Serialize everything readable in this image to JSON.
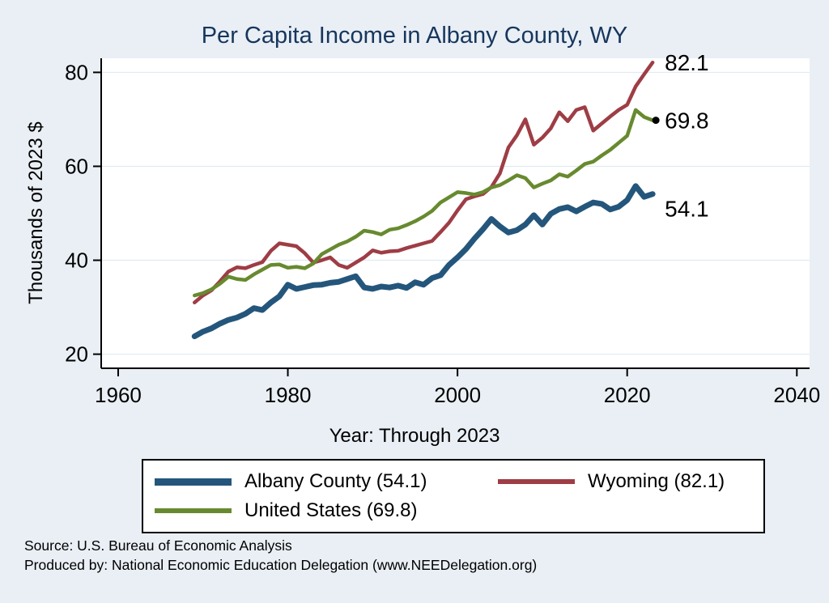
{
  "page": {
    "background": "#e9eff5"
  },
  "header": {
    "title_color": "#17365d"
  },
  "chart_data": {
    "type": "line",
    "title": "Per Capita Income in Albany County, WY",
    "xlabel": "Year: Through 2023",
    "ylabel": "Thousands of 2023 $",
    "xlim": [
      1958,
      2041.5
    ],
    "ylim": [
      17,
      83
    ],
    "xticks": [
      1960,
      1980,
      2000,
      2020,
      2040
    ],
    "yticks": [
      20,
      40,
      60,
      80
    ],
    "grid": true,
    "legend_position": "bottom",
    "x": [
      1969,
      1970,
      1971,
      1972,
      1973,
      1974,
      1975,
      1976,
      1977,
      1978,
      1979,
      1980,
      1981,
      1982,
      1983,
      1984,
      1985,
      1986,
      1987,
      1988,
      1989,
      1990,
      1991,
      1992,
      1993,
      1994,
      1995,
      1996,
      1997,
      1998,
      1999,
      2000,
      2001,
      2002,
      2003,
      2004,
      2005,
      2006,
      2007,
      2008,
      2009,
      2010,
      2011,
      2012,
      2013,
      2014,
      2015,
      2016,
      2017,
      2018,
      2019,
      2020,
      2021,
      2022,
      2023
    ],
    "series": [
      {
        "id": "albany-county",
        "name": "Albany County (54.1)",
        "color": "#24567c",
        "width": 7,
        "swatch_height": 9,
        "end_label": "54.1",
        "label_dy": 18,
        "end_marker": false,
        "values": [
          23.8,
          24.8,
          25.5,
          26.5,
          27.3,
          27.8,
          28.6,
          29.8,
          29.4,
          31.0,
          32.3,
          34.8,
          33.9,
          34.3,
          34.7,
          34.8,
          35.2,
          35.4,
          36.0,
          36.6,
          34.2,
          33.9,
          34.4,
          34.2,
          34.6,
          34.1,
          35.3,
          34.8,
          36.2,
          36.8,
          39.0,
          40.6,
          42.4,
          44.6,
          46.6,
          48.8,
          47.2,
          45.9,
          46.4,
          47.6,
          49.6,
          47.6,
          49.9,
          50.9,
          51.3,
          50.4,
          51.4,
          52.3,
          52.0,
          50.8,
          51.4,
          52.8,
          55.8,
          53.5,
          54.1
        ]
      },
      {
        "id": "wyoming",
        "name": "Wyoming (82.1)",
        "color": "#9e3d45",
        "width": 4.5,
        "swatch_height": 6,
        "end_label": "82.1",
        "label_dy": 0,
        "end_marker": false,
        "values": [
          31.0,
          32.5,
          33.6,
          35.5,
          37.6,
          38.5,
          38.3,
          39.0,
          39.6,
          42.0,
          43.6,
          43.3,
          43.0,
          41.5,
          39.5,
          40.0,
          40.6,
          39.0,
          38.4,
          39.5,
          40.6,
          42.1,
          41.6,
          41.9,
          42.0,
          42.6,
          43.1,
          43.6,
          44.1,
          46.0,
          48.0,
          50.6,
          53.0,
          53.6,
          54.1,
          55.6,
          58.5,
          64.0,
          66.6,
          70.0,
          64.6,
          66.1,
          68.1,
          71.5,
          69.6,
          72.0,
          72.6,
          67.6,
          69.1,
          70.6,
          72.0,
          73.1,
          77.0,
          79.6,
          82.1
        ]
      },
      {
        "id": "united-states",
        "name": "United States (69.8)",
        "color": "#678a2f",
        "width": 4.5,
        "swatch_height": 6,
        "end_label": "69.8",
        "label_dy": 0,
        "end_marker": true,
        "values": [
          32.5,
          33.0,
          33.8,
          35.0,
          36.5,
          36.0,
          35.8,
          37.0,
          38.0,
          39.0,
          39.1,
          38.4,
          38.6,
          38.3,
          39.3,
          41.3,
          42.3,
          43.3,
          44.0,
          45.0,
          46.3,
          46.0,
          45.5,
          46.5,
          46.8,
          47.5,
          48.3,
          49.3,
          50.5,
          52.3,
          53.4,
          54.5,
          54.3,
          54.0,
          54.5,
          55.5,
          56.0,
          57.0,
          58.1,
          57.5,
          55.5,
          56.3,
          57.0,
          58.3,
          57.8,
          59.1,
          60.5,
          61.0,
          62.3,
          63.5,
          65.0,
          66.5,
          72.0,
          70.5,
          69.8
        ]
      }
    ]
  },
  "footer": {
    "source": "Source: U.S. Bureau of Economic Analysis",
    "produced": "Produced by: National Economic Education Delegation (www.NEEDelegation.org)"
  }
}
